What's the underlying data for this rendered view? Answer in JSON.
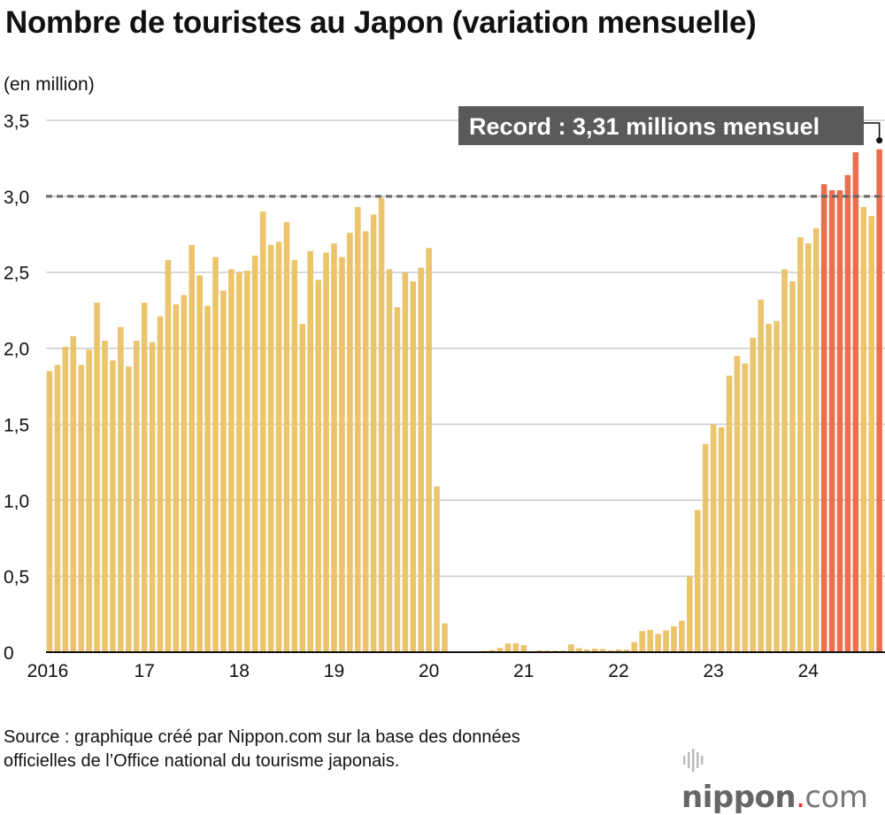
{
  "title": "Nombre de touristes au Japon (variation mensuelle)",
  "unit": "(en million)",
  "source_lines": [
    "Source : graphique créé par Nippon.com sur la base des données",
    "officielles de l’Office national du tourisme japonais."
  ],
  "logo": {
    "name": "nippon",
    "dot": ".",
    "tld": "com"
  },
  "chart_data": {
    "type": "bar",
    "title": "Nombre de touristes au Japon (variation mensuelle)",
    "ylabel": "(en million)",
    "ylim": [
      0,
      3.5
    ],
    "yticks": [
      {
        "v": 0,
        "label": "0"
      },
      {
        "v": 0.5,
        "label": "0,5"
      },
      {
        "v": 1,
        "label": "1,0"
      },
      {
        "v": 1.5,
        "label": "1,5"
      },
      {
        "v": 2,
        "label": "2,0"
      },
      {
        "v": 2.5,
        "label": "2,5"
      },
      {
        "v": 3,
        "label": "3,0"
      },
      {
        "v": 3.5,
        "label": "3,5"
      }
    ],
    "xticks": [
      "2016",
      "17",
      "18",
      "19",
      "20",
      "21",
      "22",
      "23",
      "24"
    ],
    "start": "2016-01",
    "end": "2024-10",
    "grid": true,
    "reference_line": {
      "value": 3.0,
      "style": "dotted"
    },
    "colors": {
      "normal": "#EBC46B",
      "above_3m": "#E8704F",
      "grid": "#cccccc",
      "annotation_box": "#5a5a5a"
    },
    "annotation": {
      "text": "Record : 3,31 millions mensuel",
      "target": "2024-10"
    },
    "values": [
      1.85,
      1.89,
      2.01,
      2.08,
      1.89,
      1.99,
      2.3,
      2.05,
      1.92,
      2.14,
      1.88,
      2.05,
      2.3,
      2.04,
      2.21,
      2.58,
      2.29,
      2.35,
      2.68,
      2.48,
      2.28,
      2.6,
      2.38,
      2.52,
      2.5,
      2.51,
      2.61,
      2.9,
      2.68,
      2.7,
      2.83,
      2.58,
      2.16,
      2.64,
      2.45,
      2.63,
      2.69,
      2.6,
      2.76,
      2.93,
      2.77,
      2.88,
      2.99,
      2.52,
      2.27,
      2.5,
      2.44,
      2.53,
      2.66,
      1.09,
      0.19,
      0.003,
      0.002,
      0.003,
      0.004,
      0.009,
      0.014,
      0.028,
      0.057,
      0.059,
      0.046,
      0.007,
      0.012,
      0.011,
      0.01,
      0.01,
      0.051,
      0.026,
      0.018,
      0.022,
      0.021,
      0.012,
      0.017,
      0.017,
      0.066,
      0.139,
      0.147,
      0.12,
      0.144,
      0.17,
      0.207,
      0.499,
      0.935,
      1.37,
      1.5,
      1.48,
      1.82,
      1.95,
      1.9,
      2.07,
      2.32,
      2.16,
      2.18,
      2.52,
      2.44,
      2.73,
      2.69,
      2.79,
      3.08,
      3.04,
      3.04,
      3.14,
      3.29,
      2.93,
      2.87,
      3.31
    ]
  }
}
